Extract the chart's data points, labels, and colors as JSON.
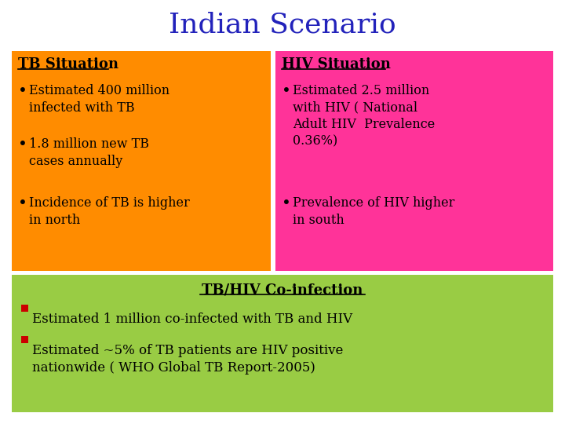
{
  "title": "Indian Scenario",
  "title_color": "#2222BB",
  "title_fontsize": 26,
  "title_font": "serif",
  "bg_color": "#FFFFFF",
  "tb_box_color": "#FF8C00",
  "hiv_box_color": "#FF3399",
  "coinfection_box_color": "#99CC44",
  "tb_heading": "TB Situation",
  "hiv_heading": "HIV Situation",
  "coinfection_heading": "TB/HIV Co-infection",
  "tb_bullets": [
    "Estimated 400 million\ninfected with TB",
    "1.8 million new TB\ncases annually",
    "Incidence of TB is higher\nin north"
  ],
  "hiv_bullet1_normal": "Estimated 2.5 million\nwith HIV ( National\nAdult HIV  Prevalence\n0.36%)",
  "hiv_bullet2": "Prevalence of HIV higher\nin south",
  "coinfection_bullets": [
    "Estimated 1 million co-infected with TB and HIV",
    "Estimated ~5% of TB patients are HIV positive\nnationwide ( WHO Global TB Report-2005)"
  ],
  "bullet_marker_color": "#CC0000",
  "text_color": "#000000",
  "heading_fontsize": 13,
  "bullet_fontsize": 11.5,
  "coinfection_heading_fontsize": 13,
  "coinfection_bullet_fontsize": 12
}
